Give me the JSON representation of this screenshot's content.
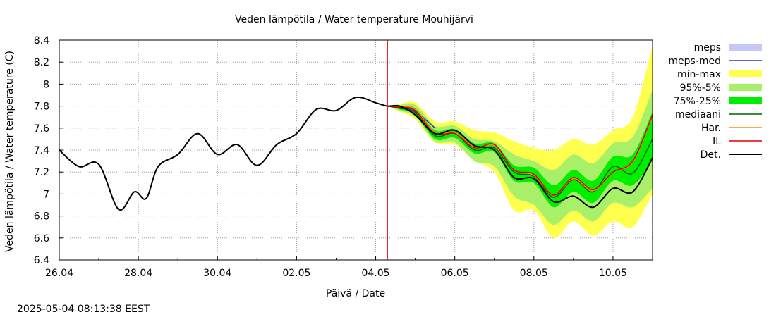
{
  "chart_data": {
    "type": "line",
    "title": "Veden lämpötila / Water temperature Mouhijärvi",
    "xlabel": "Päivä / Date",
    "ylabel": "Veden lämpötila / Water temperature (C)",
    "ylim": [
      6.4,
      8.4
    ],
    "yticks": [
      "6.4",
      "6.6",
      "6.8",
      "7",
      "7.2",
      "7.4",
      "7.6",
      "7.8",
      "8",
      "8.2",
      "8.4"
    ],
    "xticks": [
      "26.04",
      "28.04",
      "30.04",
      "02.05",
      "04.05",
      "06.05",
      "08.05",
      "10.05"
    ],
    "xlim_days": [
      0,
      15
    ],
    "grid": true,
    "legend_position": "right",
    "forecast_start_day": 8.3,
    "timestamp": "2025-05-04 08:13:38 EEST",
    "legend": [
      {
        "label": "meps",
        "kind": "band",
        "color": "#c8c8f5"
      },
      {
        "label": "meps-med",
        "kind": "line",
        "color": "#3030b0"
      },
      {
        "label": "min-max",
        "kind": "band",
        "color": "#ffff50"
      },
      {
        "label": "95%-5%",
        "kind": "band",
        "color": "#a8f068"
      },
      {
        "label": "75%-25%",
        "kind": "band",
        "color": "#00ee00"
      },
      {
        "label": "mediaani",
        "kind": "line",
        "color": "#006400"
      },
      {
        "label": "Har.",
        "kind": "line",
        "color": "#ff8c00"
      },
      {
        "label": "IL",
        "kind": "line",
        "color": "#e00000"
      },
      {
        "label": "Det.",
        "kind": "line",
        "color": "#000000"
      }
    ],
    "x": [
      0,
      0.5,
      1,
      1.5,
      1.9,
      2.2,
      2.5,
      3,
      3.5,
      4,
      4.5,
      5,
      5.5,
      6,
      6.5,
      7,
      7.5,
      8,
      8.3,
      8.6,
      9,
      9.5,
      10,
      10.5,
      11,
      11.5,
      12,
      12.5,
      13,
      13.5,
      14,
      14.5,
      15
    ],
    "series": [
      {
        "name": "Det.",
        "color": "#000000",
        "values": [
          7.4,
          7.25,
          7.27,
          6.86,
          7.02,
          6.96,
          7.25,
          7.36,
          7.55,
          7.36,
          7.45,
          7.26,
          7.45,
          7.55,
          7.77,
          7.76,
          7.88,
          7.83,
          7.8,
          7.8,
          7.72,
          7.55,
          7.58,
          7.44,
          7.4,
          7.15,
          7.14,
          6.93,
          6.98,
          6.88,
          7.05,
          7.02,
          7.33
        ]
      },
      {
        "name": "IL",
        "color": "#e00000",
        "values": [
          null,
          null,
          null,
          null,
          null,
          null,
          null,
          null,
          null,
          null,
          null,
          null,
          null,
          null,
          null,
          null,
          null,
          null,
          7.8,
          7.79,
          7.76,
          7.55,
          7.55,
          7.42,
          7.45,
          7.22,
          7.18,
          6.99,
          7.15,
          7.04,
          7.2,
          7.3,
          7.72
        ]
      },
      {
        "name": "Har.",
        "color": "#ff8c00",
        "values": [
          null,
          null,
          null,
          null,
          null,
          null,
          null,
          null,
          null,
          null,
          null,
          null,
          null,
          null,
          null,
          null,
          null,
          null,
          7.8,
          7.8,
          7.77,
          7.56,
          7.56,
          7.43,
          7.44,
          7.22,
          7.17,
          6.99,
          7.14,
          7.03,
          7.2,
          7.29,
          7.71
        ]
      },
      {
        "name": "mediaani",
        "color": "#006400",
        "values": [
          null,
          null,
          null,
          null,
          null,
          null,
          null,
          null,
          null,
          null,
          null,
          null,
          null,
          null,
          null,
          null,
          null,
          null,
          7.8,
          7.78,
          7.74,
          7.53,
          7.55,
          7.4,
          7.42,
          7.2,
          7.16,
          6.97,
          7.13,
          7.02,
          7.25,
          7.19,
          7.5
        ]
      },
      {
        "name": "meps-med",
        "color": "#3030b0",
        "values": [
          null,
          null,
          null,
          null,
          null,
          null,
          null,
          null,
          null,
          null,
          null,
          null,
          null,
          null,
          null,
          null,
          null,
          null,
          7.8,
          7.79,
          7.75,
          7.6,
          null,
          null,
          null,
          null,
          null,
          null,
          null,
          null,
          null,
          null,
          null
        ]
      }
    ],
    "bands": [
      {
        "name": "min-max",
        "color": "#ffff50",
        "lower": [
          null,
          null,
          null,
          null,
          null,
          null,
          null,
          null,
          null,
          null,
          null,
          null,
          null,
          null,
          null,
          null,
          null,
          null,
          7.8,
          7.75,
          7.68,
          7.47,
          7.45,
          7.3,
          7.2,
          6.85,
          6.85,
          6.6,
          6.75,
          6.62,
          6.75,
          6.7,
          7.0
        ],
        "upper": [
          null,
          null,
          null,
          null,
          null,
          null,
          null,
          null,
          null,
          null,
          null,
          null,
          null,
          null,
          null,
          null,
          null,
          null,
          7.8,
          7.82,
          7.83,
          7.66,
          7.66,
          7.58,
          7.56,
          7.48,
          7.42,
          7.4,
          7.5,
          7.45,
          7.58,
          7.7,
          8.35
        ]
      },
      {
        "name": "95%-5%",
        "color": "#a8f068",
        "lower": [
          null,
          null,
          null,
          null,
          null,
          null,
          null,
          null,
          null,
          null,
          null,
          null,
          null,
          null,
          null,
          null,
          null,
          null,
          7.8,
          7.76,
          7.7,
          7.48,
          7.47,
          7.3,
          7.25,
          6.98,
          6.9,
          6.72,
          6.85,
          6.75,
          6.92,
          6.88,
          7.05
        ],
        "upper": [
          null,
          null,
          null,
          null,
          null,
          null,
          null,
          null,
          null,
          null,
          null,
          null,
          null,
          null,
          null,
          null,
          null,
          null,
          7.8,
          7.81,
          7.81,
          7.62,
          7.62,
          7.5,
          7.48,
          7.36,
          7.3,
          7.22,
          7.36,
          7.28,
          7.46,
          7.52,
          7.95
        ]
      },
      {
        "name": "75%-25%",
        "color": "#00ee00",
        "lower": [
          null,
          null,
          null,
          null,
          null,
          null,
          null,
          null,
          null,
          null,
          null,
          null,
          null,
          null,
          null,
          null,
          null,
          null,
          7.8,
          7.77,
          7.72,
          7.5,
          7.51,
          7.37,
          7.38,
          7.12,
          7.1,
          6.88,
          7.02,
          6.92,
          7.12,
          7.08,
          7.3
        ],
        "upper": [
          null,
          null,
          null,
          null,
          null,
          null,
          null,
          null,
          null,
          null,
          null,
          null,
          null,
          null,
          null,
          null,
          null,
          null,
          7.8,
          7.8,
          7.78,
          7.58,
          7.59,
          7.46,
          7.46,
          7.26,
          7.24,
          7.08,
          7.22,
          7.12,
          7.34,
          7.36,
          7.75
        ]
      }
    ]
  }
}
